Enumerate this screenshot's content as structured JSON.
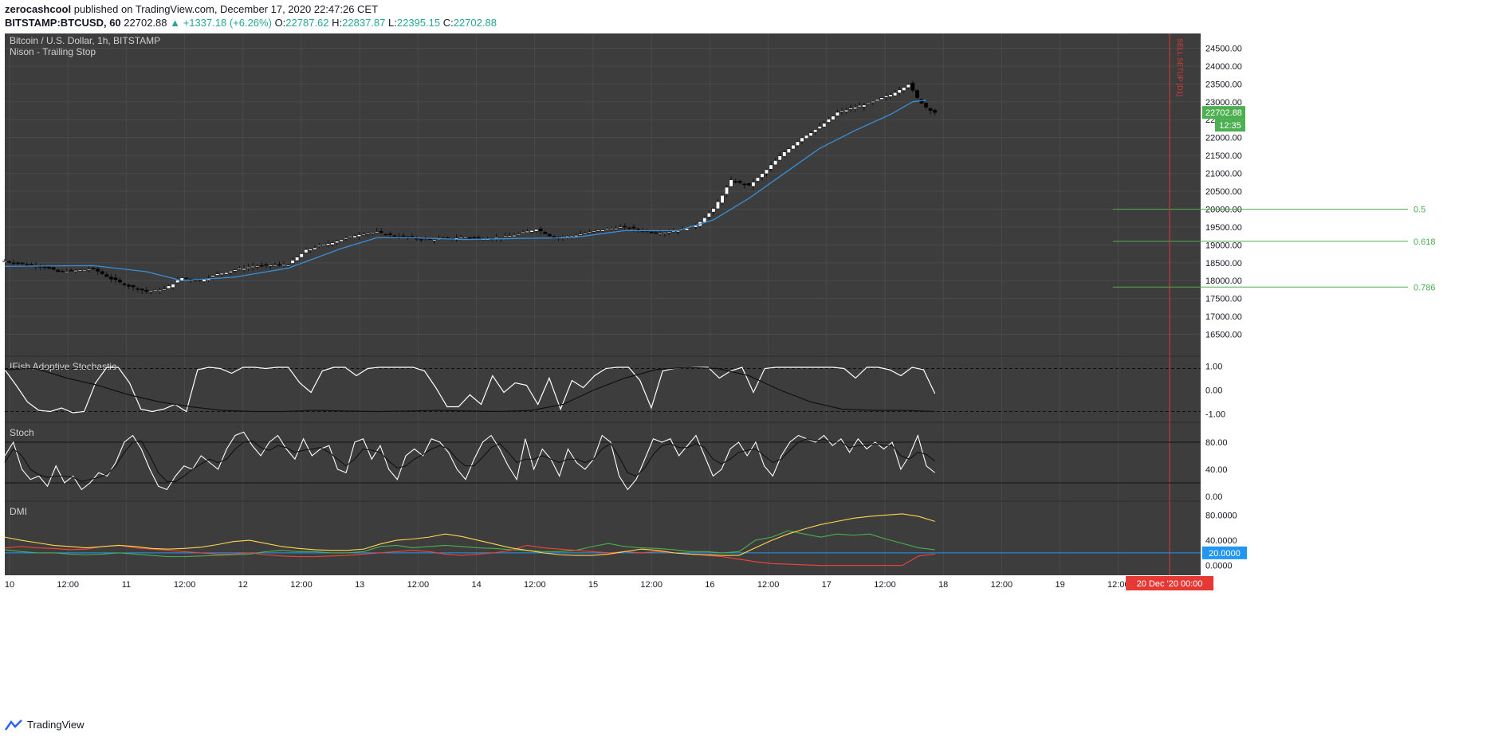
{
  "header": {
    "author": "zerocashcool",
    "published": "published on TradingView.com, December 17, 2020 22:47:26 CET",
    "symbol": "BITSTAMP:BTCUSD, 60",
    "last": "22702.88",
    "change": "▲ +1337.18 (+6.26%)",
    "o_label": "O:",
    "o": "22787.62",
    "h_label": "H:",
    "h": "22837.87",
    "l_label": "L:",
    "l": "22395.15",
    "c_label": "C:",
    "c": "22702.88"
  },
  "footer": {
    "brand": "TradingView"
  },
  "colors": {
    "background": "#3d3d3d",
    "grid": "#4a4a4a",
    "candle_up": "#ffffff",
    "candle_down": "#000000",
    "trailing_stop": "#3a8fd9",
    "fib": "#4caf50",
    "sell_line": "#e53935",
    "dmi_plus": "#4caf50",
    "dmi_minus": "#f44336",
    "adx": "#ffd54f",
    "price_tag": "#4caf50"
  },
  "chart_data": [
    {
      "type": "candlestick",
      "title": "Bitcoin / U.S. Dollar, 1h, BITSTAMP",
      "subtitle": "Nison - Trailing Stop",
      "x_ticks": [
        "10",
        "12:00",
        "11",
        "12:00",
        "12",
        "12:00",
        "13",
        "12:00",
        "14",
        "12:00",
        "15",
        "12:00",
        "16",
        "12:00",
        "17",
        "12:00",
        "18",
        "12:00",
        "19",
        "12:00"
      ],
      "ylim": [
        16000,
        24800
      ],
      "y_ticks": [
        16500,
        17000,
        17500,
        18000,
        18500,
        19000,
        19500,
        20000,
        20500,
        21000,
        21500,
        22000,
        22500,
        23000,
        23500,
        24000,
        24500
      ],
      "price_path": [
        [
          0,
          18550
        ],
        [
          8,
          18470
        ],
        [
          16,
          18420
        ],
        [
          24,
          18250
        ],
        [
          32,
          18280
        ],
        [
          40,
          18330
        ],
        [
          48,
          18050
        ],
        [
          56,
          17850
        ],
        [
          64,
          17700
        ],
        [
          72,
          17760
        ],
        [
          80,
          18080
        ],
        [
          88,
          18000
        ],
        [
          96,
          18180
        ],
        [
          104,
          18300
        ],
        [
          112,
          18400
        ],
        [
          120,
          18430
        ],
        [
          128,
          18450
        ],
        [
          136,
          18850
        ],
        [
          144,
          19000
        ],
        [
          152,
          19150
        ],
        [
          160,
          19300
        ],
        [
          168,
          19350
        ],
        [
          176,
          19250
        ],
        [
          184,
          19200
        ],
        [
          192,
          19150
        ],
        [
          200,
          19180
        ],
        [
          208,
          19220
        ],
        [
          216,
          19180
        ],
        [
          224,
          19200
        ],
        [
          232,
          19300
        ],
        [
          240,
          19450
        ],
        [
          248,
          19200
        ],
        [
          256,
          19250
        ],
        [
          264,
          19350
        ],
        [
          272,
          19450
        ],
        [
          280,
          19500
        ],
        [
          288,
          19400
        ],
        [
          296,
          19350
        ],
        [
          304,
          19400
        ],
        [
          312,
          19550
        ],
        [
          320,
          20000
        ],
        [
          328,
          20800
        ],
        [
          336,
          20650
        ],
        [
          344,
          21100
        ],
        [
          352,
          21600
        ],
        [
          360,
          22000
        ],
        [
          368,
          22300
        ],
        [
          376,
          22700
        ],
        [
          384,
          22850
        ],
        [
          392,
          23000
        ],
        [
          400,
          23200
        ],
        [
          408,
          23500
        ],
        [
          412,
          23100
        ],
        [
          416,
          22850
        ],
        [
          420,
          22703
        ]
      ],
      "trailing_stop": [
        [
          0,
          18400
        ],
        [
          40,
          18420
        ],
        [
          64,
          18250
        ],
        [
          80,
          18000
        ],
        [
          104,
          18100
        ],
        [
          128,
          18350
        ],
        [
          152,
          18900
        ],
        [
          168,
          19200
        ],
        [
          184,
          19200
        ],
        [
          208,
          19150
        ],
        [
          232,
          19180
        ],
        [
          256,
          19200
        ],
        [
          280,
          19400
        ],
        [
          304,
          19400
        ],
        [
          320,
          19700
        ],
        [
          336,
          20300
        ],
        [
          352,
          21000
        ],
        [
          368,
          21700
        ],
        [
          384,
          22200
        ],
        [
          400,
          22650
        ],
        [
          410,
          23000
        ],
        [
          416,
          23050
        ]
      ],
      "fib_levels": [
        {
          "label": "0.5",
          "value": 20000
        },
        {
          "label": "0.618",
          "value": 19100
        },
        {
          "label": "0.786",
          "value": 17820
        }
      ],
      "vertical_marker": {
        "label": "SELL SETUP [D1]",
        "bar": 526
      },
      "last_price_label": "22702.88",
      "countdown_label": "12:35"
    },
    {
      "type": "line",
      "title": "IFish Adoptive Stochastic",
      "ylim": [
        -1.15,
        1.15
      ],
      "y_ticks": [
        "1.00",
        "0.00",
        "-1.00"
      ],
      "levels": [
        0.9,
        -0.9
      ],
      "values": [
        0.85,
        0.2,
        -0.5,
        -0.85,
        -0.9,
        -0.75,
        -0.95,
        -0.9,
        0.3,
        0.95,
        0.95,
        0.3,
        -0.8,
        -0.9,
        -0.8,
        -0.6,
        -0.9,
        0.85,
        0.95,
        0.9,
        0.7,
        0.95,
        0.95,
        0.9,
        0.95,
        0.95,
        0.3,
        -0.1,
        0.8,
        0.95,
        0.95,
        0.6,
        0.9,
        0.95,
        0.95,
        0.95,
        0.95,
        0.8,
        0.1,
        -0.7,
        -0.7,
        -0.2,
        -0.6,
        0.6,
        -0.1,
        0.3,
        0.2,
        -0.6,
        0.5,
        -0.8,
        0.4,
        0.1,
        0.6,
        0.9,
        0.95,
        0.95,
        0.4,
        -0.75,
        0.8,
        0.9,
        0.95,
        0.95,
        0.95,
        0.5,
        0.8,
        0.95,
        -0.1,
        0.9,
        0.95,
        0.95,
        0.95,
        0.95,
        0.95,
        0.95,
        0.9,
        0.5,
        0.95,
        0.95,
        0.85,
        0.6,
        0.95,
        0.85,
        -0.15
      ],
      "black_values": [
        0.85,
        0.9,
        0.5,
        0.2,
        -0.2,
        -0.5,
        -0.7,
        -0.85,
        -0.9,
        -0.9,
        -0.85,
        -0.88,
        -0.9,
        -0.88,
        -0.85,
        -0.88,
        -0.9,
        -0.85,
        -0.6,
        0.0,
        0.5,
        0.85,
        0.95,
        0.9,
        0.6,
        0.0,
        -0.5,
        -0.8,
        -0.85,
        -0.85,
        -0.9
      ],
      "black_start_index": 0
    },
    {
      "type": "line",
      "title": "Stoch",
      "ylim": [
        0,
        100
      ],
      "y_ticks": [
        "80.00",
        "40.00",
        "0.00"
      ],
      "levels": [
        80,
        20
      ],
      "k_values": [
        60,
        80,
        40,
        25,
        30,
        15,
        45,
        20,
        30,
        10,
        20,
        35,
        30,
        50,
        80,
        90,
        70,
        40,
        15,
        10,
        30,
        45,
        40,
        60,
        50,
        40,
        70,
        90,
        95,
        75,
        60,
        80,
        90,
        70,
        55,
        85,
        60,
        70,
        75,
        40,
        35,
        80,
        85,
        55,
        75,
        40,
        25,
        60,
        70,
        60,
        85,
        80,
        65,
        40,
        25,
        55,
        80,
        90,
        70,
        45,
        25,
        85,
        40,
        70,
        55,
        30,
        70,
        50,
        40,
        55,
        90,
        80,
        30,
        10,
        25,
        55,
        85,
        80,
        85,
        60,
        75,
        90,
        60,
        30,
        40,
        70,
        80,
        60,
        80,
        45,
        30,
        60,
        80,
        90,
        85,
        80,
        90,
        75,
        85,
        65,
        85,
        70,
        80,
        70,
        80,
        40,
        60,
        90,
        45,
        35
      ],
      "d_values": [
        50,
        70,
        60,
        40,
        32,
        28,
        30,
        30,
        28,
        22,
        25,
        28,
        33,
        45,
        65,
        80,
        82,
        60,
        35,
        22,
        22,
        30,
        40,
        48,
        55,
        50,
        55,
        70,
        80,
        82,
        72,
        68,
        75,
        72,
        65,
        68,
        70,
        72,
        65,
        55,
        45,
        55,
        70,
        68,
        65,
        52,
        42,
        45,
        55,
        62,
        70,
        75,
        70,
        55,
        45,
        45,
        58,
        72,
        78,
        65,
        50,
        55,
        55,
        60,
        55,
        50,
        55,
        55,
        50,
        55,
        70,
        78,
        58,
        35,
        30,
        42,
        62,
        75,
        78,
        72,
        72,
        78,
        72,
        55,
        48,
        55,
        65,
        68,
        70,
        60,
        50,
        55,
        68,
        80,
        85,
        82,
        84,
        80,
        80,
        72,
        75,
        75,
        78,
        75,
        75,
        60,
        55,
        65,
        62,
        52
      ]
    },
    {
      "type": "line",
      "title": "DMI",
      "ylim": [
        -8,
        92
      ],
      "y_ticks": [
        "80.0000",
        "40.0000",
        "20.0000",
        "0.0000"
      ],
      "reference_level": 20,
      "series": [
        {
          "color": "#4caf50",
          "values": [
            25,
            22,
            20,
            20,
            18,
            17,
            18,
            20,
            18,
            16,
            14,
            14,
            15,
            16,
            17,
            18,
            22,
            24,
            22,
            22,
            20,
            20,
            22,
            30,
            32,
            28,
            30,
            32,
            30,
            28,
            27,
            25,
            24,
            22,
            22,
            24,
            30,
            35,
            30,
            28,
            27,
            25,
            22,
            22,
            20,
            22,
            40,
            45,
            55,
            50,
            45,
            50,
            48,
            50,
            42,
            35,
            28,
            25
          ]
        },
        {
          "color": "#f44336",
          "values": [
            28,
            30,
            28,
            27,
            25,
            26,
            30,
            32,
            28,
            26,
            24,
            22,
            20,
            18,
            18,
            20,
            17,
            15,
            14,
            14,
            15,
            16,
            18,
            20,
            22,
            24,
            22,
            18,
            16,
            18,
            20,
            24,
            32,
            28,
            26,
            24,
            22,
            20,
            22,
            20,
            22,
            20,
            18,
            16,
            14,
            10,
            6,
            3,
            2,
            1,
            0,
            0,
            0,
            0,
            0,
            0,
            15,
            18
          ]
        },
        {
          "color": "#ffd54f",
          "values": [
            45,
            40,
            36,
            32,
            30,
            28,
            30,
            32,
            30,
            27,
            26,
            27,
            29,
            33,
            38,
            40,
            35,
            30,
            27,
            25,
            24,
            24,
            26,
            34,
            40,
            42,
            45,
            50,
            46,
            40,
            34,
            28,
            24,
            20,
            17,
            16,
            16,
            18,
            22,
            26,
            24,
            20,
            18,
            17,
            16,
            16,
            28,
            40,
            50,
            58,
            65,
            70,
            75,
            78,
            80,
            82,
            78,
            70
          ]
        }
      ]
    }
  ]
}
